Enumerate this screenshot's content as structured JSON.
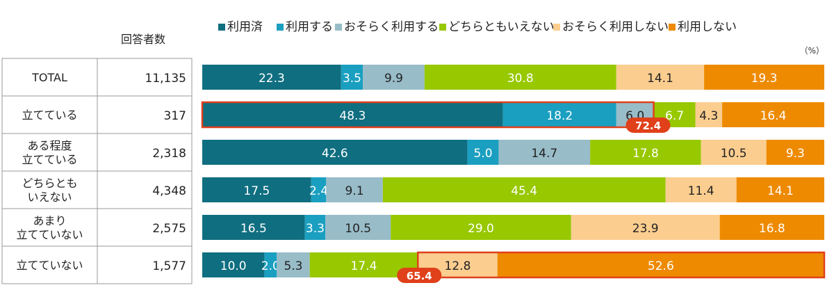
{
  "chart_data": {
    "type": "bar",
    "orientation": "horizontal",
    "stacked": "100%",
    "unit_label": "（%）",
    "column_header": "回答者数",
    "categories": [
      "TOTAL",
      "立てている",
      "ある程度\n立てている",
      "どちらとも\nいえない",
      "あまり\n立てていない",
      "立てていない"
    ],
    "respondents": [
      "11,135",
      "317",
      "2,318",
      "4,348",
      "2,575",
      "1,577"
    ],
    "series": [
      {
        "name": "利用済",
        "color": "#0f6e80",
        "values": [
          22.3,
          48.3,
          42.6,
          17.5,
          16.5,
          10.0
        ]
      },
      {
        "name": "利用する",
        "color": "#1a9fc0",
        "values": [
          3.5,
          18.2,
          5.0,
          2.4,
          3.3,
          2.0
        ]
      },
      {
        "name": "おそらく利用する",
        "color": "#98bcc8",
        "values": [
          9.9,
          6.0,
          14.7,
          9.1,
          10.5,
          5.3
        ]
      },
      {
        "name": "どちらともいえない",
        "color": "#97c800",
        "values": [
          30.8,
          6.7,
          17.8,
          45.4,
          29.0,
          17.4
        ]
      },
      {
        "name": "おそらく利用しない",
        "color": "#fbcd8f",
        "values": [
          14.1,
          4.3,
          10.5,
          11.4,
          23.9,
          12.8
        ]
      },
      {
        "name": "利用しない",
        "color": "#ee8a00",
        "values": [
          19.3,
          16.4,
          9.3,
          14.1,
          16.8,
          52.6
        ]
      }
    ],
    "highlights": [
      {
        "row": 1,
        "from_series": 0,
        "to_series": 2,
        "total_label": "72.4"
      },
      {
        "row": 5,
        "from_series": 4,
        "to_series": 5,
        "total_label": "65.4"
      }
    ],
    "highlight_color": "#e0401a"
  }
}
